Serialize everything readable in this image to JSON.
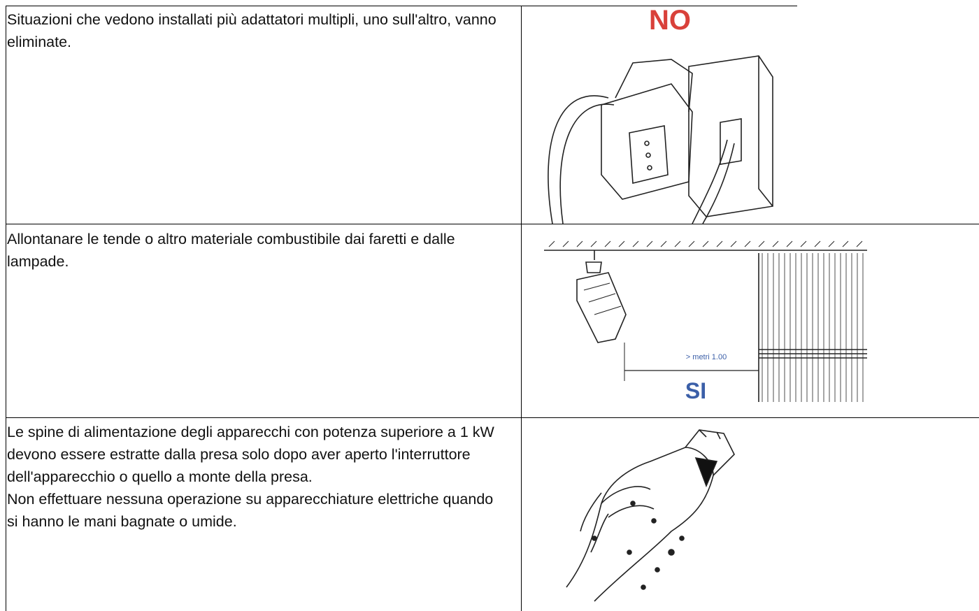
{
  "table": {
    "rows": [
      {
        "paragraphs": [
          "Situazioni che vedono installati più adattatori multipli, uno sull'altro, vanno eliminate."
        ],
        "image": {
          "labels": [
            "NO"
          ]
        }
      },
      {
        "paragraphs": [
          "Allontanare le tende o altro materiale combustibile dai faretti e dalle lampade."
        ],
        "image": {
          "labels": [
            "> metri 1.00",
            "SI"
          ]
        }
      },
      {
        "paragraphs": [
          "Le spine di alimentazione degli apparecchi con potenza superiore a 1 kW devono essere estratte dalla presa solo dopo aver aperto l'interruttore dell'apparecchio o quello a monte della presa.",
          "Non effettuare nessuna operazione su apparecchiature elettriche quando si hanno le mani bagnate o umide."
        ],
        "image": {}
      }
    ]
  }
}
